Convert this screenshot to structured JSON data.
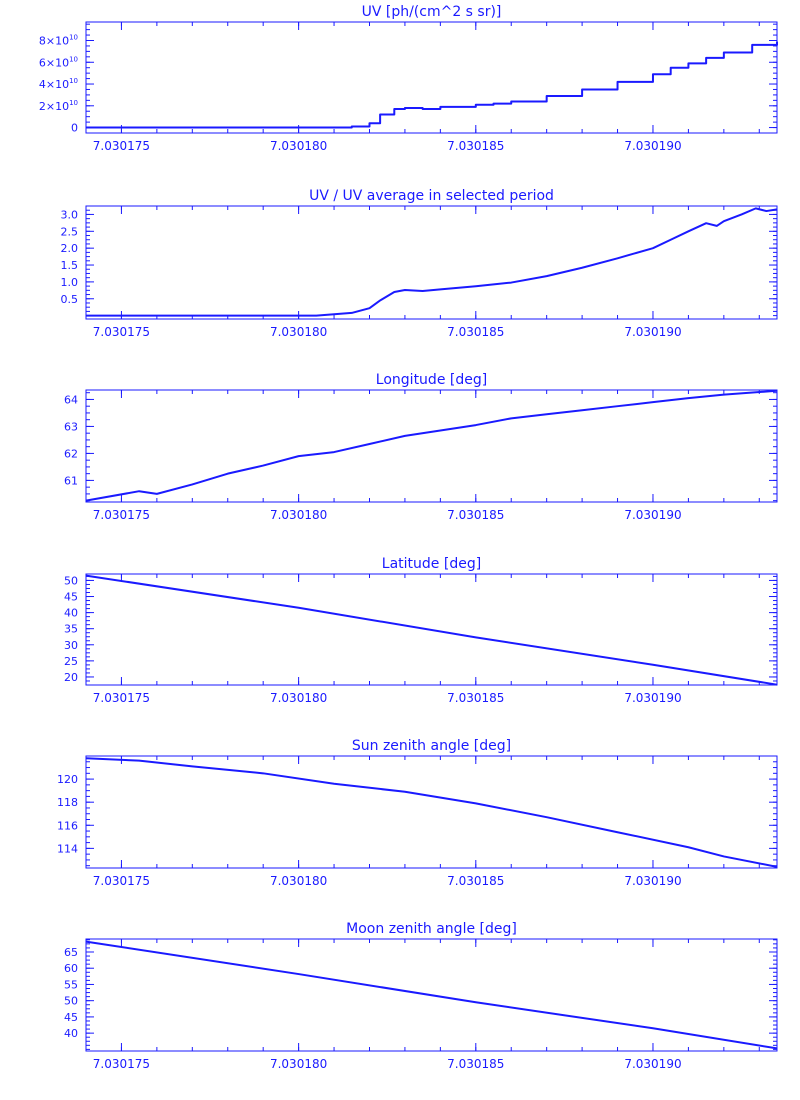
{
  "colors": {
    "line": "#1a1aff",
    "background": "#ffffff"
  },
  "chart_data": [
    {
      "type": "line",
      "title": "UV [ph/(cm^2 s sr)]",
      "xlim": [
        7.030174,
        7.0301935
      ],
      "ylim": [
        -5000000000,
        97000000000
      ],
      "x_ticks": [
        7.030175,
        7.03018,
        7.030185,
        7.03019
      ],
      "x_tick_labels": [
        "7.030175",
        "7.030180",
        "7.030185",
        "7.030190"
      ],
      "y_ticks": [
        0,
        20000000000,
        40000000000,
        60000000000,
        80000000000
      ],
      "y_tick_labels": [
        {
          "mantissa": "0",
          "exp": ""
        },
        {
          "mantissa": "2×10",
          "exp": "10"
        },
        {
          "mantissa": "4×10",
          "exp": "10"
        },
        {
          "mantissa": "6×10",
          "exp": "10"
        },
        {
          "mantissa": "8×10",
          "exp": "10"
        }
      ],
      "step": true,
      "series": [
        {
          "x": [
            7.030174,
            7.03018,
            7.0301815,
            7.030182,
            7.0301823,
            7.0301827,
            7.030183,
            7.0301835,
            7.030184,
            7.030185,
            7.0301855,
            7.030186,
            7.030187,
            7.030188,
            7.030189,
            7.03019,
            7.0301905,
            7.030191,
            7.0301915,
            7.030192,
            7.0301928,
            7.0301935
          ],
          "y": [
            0,
            0,
            1000000000,
            4000000000,
            12000000000,
            17000000000,
            18000000000,
            17000000000,
            19000000000,
            21000000000,
            22000000000,
            24000000000,
            29000000000,
            35000000000,
            42000000000,
            49000000000,
            55000000000,
            59000000000,
            64000000000,
            69000000000,
            76000000000,
            79000000000
          ]
        }
      ]
    },
    {
      "type": "line",
      "title": "UV / UV average in selected period",
      "xlim": [
        7.030174,
        7.0301935
      ],
      "ylim": [
        -0.1,
        3.25
      ],
      "x_ticks": [
        7.030175,
        7.03018,
        7.030185,
        7.03019
      ],
      "x_tick_labels": [
        "7.030175",
        "7.030180",
        "7.030185",
        "7.030190"
      ],
      "y_ticks": [
        0.5,
        1.0,
        1.5,
        2.0,
        2.5,
        3.0
      ],
      "y_tick_labels": [
        "0.5",
        "1.0",
        "1.5",
        "2.0",
        "2.5",
        "3.0"
      ],
      "series": [
        {
          "x": [
            7.030174,
            7.0301805,
            7.0301815,
            7.030182,
            7.0301823,
            7.0301827,
            7.030183,
            7.0301835,
            7.030184,
            7.030185,
            7.030186,
            7.030187,
            7.030188,
            7.030189,
            7.03019,
            7.0301905,
            7.030191,
            7.0301915,
            7.0301918,
            7.030192,
            7.0301925,
            7.0301929,
            7.0301932,
            7.0301935
          ],
          "y": [
            0,
            0,
            0.08,
            0.22,
            0.45,
            0.7,
            0.76,
            0.73,
            0.78,
            0.87,
            0.98,
            1.17,
            1.42,
            1.7,
            2.0,
            2.25,
            2.5,
            2.74,
            2.66,
            2.8,
            3.0,
            3.18,
            3.1,
            3.15
          ]
        }
      ]
    },
    {
      "type": "line",
      "title": "Longitude [deg]",
      "xlim": [
        7.030174,
        7.0301935
      ],
      "ylim": [
        60.2,
        64.35
      ],
      "x_ticks": [
        7.030175,
        7.03018,
        7.030185,
        7.03019
      ],
      "x_tick_labels": [
        "7.030175",
        "7.030180",
        "7.030185",
        "7.030190"
      ],
      "y_ticks": [
        61,
        62,
        63,
        64
      ],
      "y_tick_labels": [
        "61",
        "62",
        "63",
        "64"
      ],
      "series": [
        {
          "x": [
            7.030174,
            7.0301755,
            7.030176,
            7.030177,
            7.030178,
            7.030179,
            7.03018,
            7.030181,
            7.030182,
            7.030183,
            7.030184,
            7.030185,
            7.030186,
            7.030187,
            7.030188,
            7.030189,
            7.03019,
            7.030191,
            7.030192,
            7.0301935
          ],
          "y": [
            60.25,
            60.6,
            60.5,
            60.85,
            61.25,
            61.55,
            61.9,
            62.05,
            62.35,
            62.65,
            62.85,
            63.05,
            63.3,
            63.45,
            63.6,
            63.75,
            63.9,
            64.05,
            64.18,
            64.32
          ]
        }
      ]
    },
    {
      "type": "line",
      "title": "Latitude [deg]",
      "xlim": [
        7.030174,
        7.0301935
      ],
      "ylim": [
        17.5,
        52
      ],
      "x_ticks": [
        7.030175,
        7.03018,
        7.030185,
        7.03019
      ],
      "x_tick_labels": [
        "7.030175",
        "7.030180",
        "7.030185",
        "7.030190"
      ],
      "y_ticks": [
        20,
        25,
        30,
        35,
        40,
        45,
        50
      ],
      "y_tick_labels": [
        "20",
        "25",
        "30",
        "35",
        "40",
        "45",
        "50"
      ],
      "series": [
        {
          "x": [
            7.030174,
            7.03018,
            7.030185,
            7.03019,
            7.0301935
          ],
          "y": [
            51.5,
            41.5,
            32.3,
            23.8,
            17.6
          ]
        }
      ]
    },
    {
      "type": "line",
      "title": "Sun zenith angle [deg]",
      "xlim": [
        7.030174,
        7.0301935
      ],
      "ylim": [
        112.3,
        122
      ],
      "x_ticks": [
        7.030175,
        7.03018,
        7.030185,
        7.03019
      ],
      "x_tick_labels": [
        "7.030175",
        "7.030180",
        "7.030185",
        "7.030190"
      ],
      "y_ticks": [
        114,
        116,
        118,
        120
      ],
      "y_tick_labels": [
        "114",
        "116",
        "118",
        "120"
      ],
      "series": [
        {
          "x": [
            7.030174,
            7.0301755,
            7.030177,
            7.030179,
            7.030181,
            7.030183,
            7.030185,
            7.030187,
            7.030189,
            7.030191,
            7.030192,
            7.0301935
          ],
          "y": [
            121.8,
            121.6,
            121.1,
            120.5,
            119.6,
            118.9,
            117.9,
            116.7,
            115.4,
            114.1,
            113.3,
            112.4
          ]
        }
      ]
    },
    {
      "type": "line",
      "title": "Moon zenith angle [deg]",
      "xlim": [
        7.030174,
        7.0301935
      ],
      "ylim": [
        34.5,
        69
      ],
      "x_ticks": [
        7.030175,
        7.03018,
        7.030185,
        7.03019
      ],
      "x_tick_labels": [
        "7.030175",
        "7.030180",
        "7.030185",
        "7.030190"
      ],
      "y_ticks": [
        40,
        45,
        50,
        55,
        60,
        65
      ],
      "y_tick_labels": [
        "40",
        "45",
        "50",
        "55",
        "60",
        "65"
      ],
      "series": [
        {
          "x": [
            7.030174,
            7.03018,
            7.030185,
            7.03019,
            7.0301935
          ],
          "y": [
            68.2,
            58.2,
            49.5,
            41.5,
            35.3
          ]
        }
      ]
    }
  ]
}
